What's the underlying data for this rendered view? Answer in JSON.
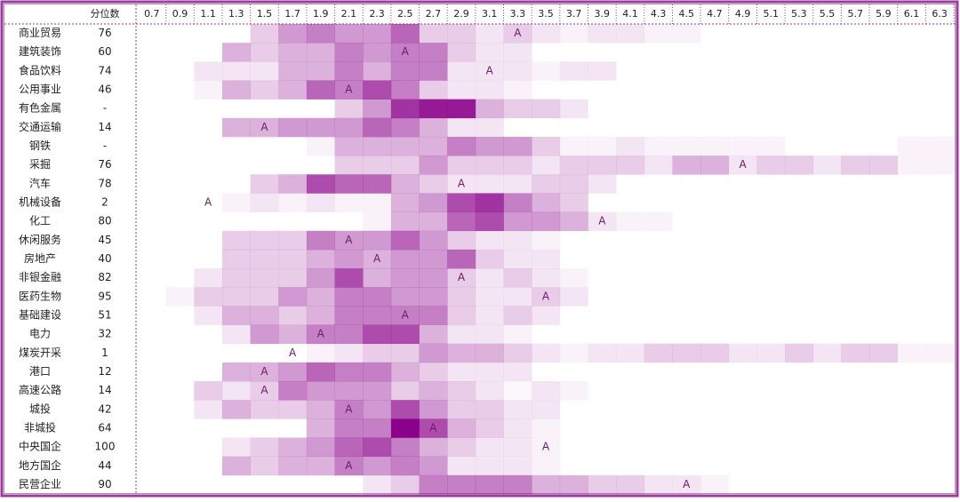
{
  "table": {
    "percentile_header": "分位数",
    "marker_label": "A",
    "columns": [
      0.7,
      0.9,
      1.1,
      1.3,
      1.5,
      1.7,
      1.9,
      2.1,
      2.3,
      2.5,
      2.7,
      2.9,
      3.1,
      3.3,
      3.5,
      3.7,
      3.9,
      4.1,
      4.3,
      4.5,
      4.7,
      4.9,
      5.1,
      5.3,
      5.5,
      5.7,
      5.9,
      6.1,
      6.3
    ],
    "rows": [
      {
        "name": "商业贸易",
        "percentile": 76,
        "marker_at": 3.3,
        "values": [
          0,
          0,
          0,
          0,
          2,
          4,
          5,
          4,
          4,
          6,
          2,
          2,
          1,
          2,
          1,
          0.5,
          1,
          1,
          0.5,
          0.5,
          0,
          0,
          0,
          0,
          0,
          0,
          0,
          0,
          0
        ]
      },
      {
        "name": "建筑装饰",
        "percentile": 60,
        "marker_at": 2.5,
        "values": [
          0,
          0,
          0,
          3,
          2,
          3,
          3,
          5,
          4,
          5,
          5,
          2,
          1,
          1,
          0,
          0,
          0,
          0,
          0,
          0,
          0,
          0,
          0,
          0,
          0,
          0,
          0,
          0,
          0
        ]
      },
      {
        "name": "食品饮料",
        "percentile": 74,
        "marker_at": 3.1,
        "values": [
          0,
          0,
          1,
          1,
          1,
          3,
          3,
          5,
          3,
          5,
          5,
          1,
          1,
          1,
          0.5,
          1,
          1,
          0,
          0,
          0,
          0,
          0,
          0,
          0,
          0,
          0,
          0,
          0,
          0
        ]
      },
      {
        "name": "公用事业",
        "percentile": 46,
        "marker_at": 2.1,
        "values": [
          0,
          0,
          0.5,
          3,
          2,
          3,
          6,
          5,
          7,
          5,
          2,
          1,
          1,
          0.5,
          0,
          0,
          0,
          0,
          0,
          0,
          0,
          0,
          0,
          0,
          0,
          0,
          0,
          0,
          0
        ]
      },
      {
        "name": "有色金属",
        "percentile": "-",
        "marker_at": null,
        "values": [
          0,
          0,
          0,
          0,
          0,
          0,
          0,
          2,
          4,
          8,
          9,
          9,
          3,
          2,
          2,
          1,
          0,
          0,
          0,
          0,
          0,
          0,
          0,
          0,
          0,
          0,
          0,
          0,
          0
        ]
      },
      {
        "name": "交通运输",
        "percentile": 14,
        "marker_at": 1.5,
        "values": [
          0,
          0,
          0,
          3,
          3,
          4,
          4,
          4,
          6,
          5,
          3,
          1,
          1,
          0,
          0,
          0,
          0,
          0,
          0,
          0,
          0,
          0,
          0,
          0,
          0,
          0,
          0,
          0,
          0
        ]
      },
      {
        "name": "钢铁",
        "percentile": "-",
        "marker_at": null,
        "values": [
          0,
          0,
          0,
          0,
          0,
          0,
          0.5,
          3,
          3,
          3,
          3,
          5,
          4,
          4,
          2,
          0.5,
          0.5,
          1,
          0.5,
          0.5,
          0.5,
          0.5,
          0.5,
          0,
          0,
          0,
          0,
          0.5,
          0.5
        ]
      },
      {
        "name": "采掘",
        "percentile": 76,
        "marker_at": 4.9,
        "values": [
          0,
          0,
          0,
          0,
          0,
          0,
          0,
          2,
          2,
          2,
          4,
          2,
          2,
          2,
          1,
          2,
          2,
          2,
          1,
          3,
          3,
          1,
          2,
          2,
          1,
          2,
          2,
          0.5,
          0.5
        ]
      },
      {
        "name": "汽车",
        "percentile": 78,
        "marker_at": 2.9,
        "values": [
          0,
          0,
          0,
          0,
          2,
          3,
          7,
          6,
          6,
          3,
          2,
          1,
          1,
          1,
          2,
          2,
          1,
          0,
          0,
          0,
          0,
          0,
          0,
          0,
          0,
          0,
          0,
          0,
          0
        ]
      },
      {
        "name": "机械设备",
        "percentile": 2,
        "marker_at": 1.1,
        "values": [
          0,
          0,
          0,
          0.5,
          1,
          0.5,
          1,
          0.5,
          0.5,
          3,
          4,
          7,
          8,
          5,
          3,
          2,
          0,
          0,
          0,
          0,
          0,
          0,
          0,
          0,
          0,
          0,
          0,
          0,
          0
        ]
      },
      {
        "name": "化工",
        "percentile": 80,
        "marker_at": 3.9,
        "values": [
          0,
          0,
          0,
          0,
          0,
          0,
          0,
          0,
          0.5,
          3,
          3,
          6,
          7,
          4,
          4,
          3,
          1,
          0.5,
          0.5,
          0,
          0,
          0,
          0,
          0,
          0,
          0,
          0,
          0,
          0
        ]
      },
      {
        "name": "休闲服务",
        "percentile": 45,
        "marker_at": 2.1,
        "values": [
          0,
          0,
          0,
          2,
          2,
          2,
          5,
          4,
          4,
          6,
          4,
          2,
          1,
          1,
          0.5,
          0,
          0,
          0,
          0,
          0,
          0,
          0,
          0,
          0,
          0,
          0,
          0,
          0,
          0
        ]
      },
      {
        "name": "房地产",
        "percentile": 40,
        "marker_at": 2.3,
        "values": [
          0,
          0,
          0,
          2,
          2,
          2,
          3,
          4,
          3,
          4,
          4,
          6,
          2,
          1,
          1,
          0,
          0,
          0,
          0,
          0,
          0,
          0,
          0,
          0,
          0,
          0,
          0,
          0,
          0
        ]
      },
      {
        "name": "非银金融",
        "percentile": 82,
        "marker_at": 2.9,
        "values": [
          0,
          0,
          1,
          2,
          2,
          2,
          4,
          7,
          3,
          4,
          4,
          2,
          1,
          2,
          1,
          0.5,
          0,
          0,
          0,
          0,
          0,
          0,
          0,
          0,
          0,
          0,
          0,
          0,
          0
        ]
      },
      {
        "name": "医药生物",
        "percentile": 95,
        "marker_at": 3.5,
        "values": [
          0,
          0.5,
          2,
          2,
          2,
          4,
          3,
          5,
          5,
          4,
          4,
          2,
          1,
          1,
          2,
          1,
          0,
          0,
          0,
          0,
          0,
          0,
          0,
          0,
          0,
          0,
          0,
          0,
          0
        ]
      },
      {
        "name": "基础建设",
        "percentile": 51,
        "marker_at": 2.5,
        "values": [
          0,
          0,
          1,
          3,
          3,
          2,
          3,
          5,
          5,
          5,
          5,
          2,
          1,
          2,
          1,
          0,
          0,
          0,
          0,
          0,
          0,
          0,
          0,
          0,
          0,
          0,
          0,
          0,
          0
        ]
      },
      {
        "name": "电力",
        "percentile": 32,
        "marker_at": 1.9,
        "values": [
          0,
          0,
          0,
          1,
          4,
          3,
          5,
          5,
          7,
          7,
          3,
          1,
          1,
          0.5,
          0,
          0,
          0,
          0,
          0,
          0,
          0,
          0,
          0,
          0,
          0,
          0,
          0,
          0,
          0
        ]
      },
      {
        "name": "煤炭开采",
        "percentile": 1,
        "marker_at": 1.7,
        "values": [
          0,
          0,
          0,
          0,
          0,
          0,
          0.5,
          1,
          2,
          2,
          4,
          3,
          3,
          2,
          1,
          0.5,
          1,
          1,
          2,
          2,
          2,
          1,
          1,
          2,
          1,
          2,
          2,
          0.5,
          0.5
        ]
      },
      {
        "name": "港口",
        "percentile": 12,
        "marker_at": 1.5,
        "values": [
          0,
          0,
          0,
          3,
          3,
          4,
          6,
          5,
          5,
          3,
          2,
          1,
          1,
          1,
          0,
          0,
          0,
          0,
          0,
          0,
          0,
          0,
          0,
          0,
          0,
          0,
          0,
          0,
          0
        ]
      },
      {
        "name": "高速公路",
        "percentile": 14,
        "marker_at": 1.5,
        "values": [
          0,
          0,
          2,
          1,
          2,
          5,
          4,
          4,
          4,
          2,
          3,
          2,
          1,
          0.3,
          1,
          0.5,
          0,
          0,
          0,
          0,
          0,
          0,
          0,
          0,
          0,
          0,
          0,
          0,
          0
        ]
      },
      {
        "name": "城投",
        "percentile": 42,
        "marker_at": 2.1,
        "values": [
          0,
          0,
          1,
          3,
          2,
          2,
          3,
          5,
          4,
          7,
          4,
          2,
          2,
          1,
          1,
          0,
          0,
          0,
          0,
          0,
          0,
          0,
          0,
          0,
          0,
          0,
          0,
          0,
          0
        ]
      },
      {
        "name": "非城投",
        "percentile": 64,
        "marker_at": 2.7,
        "values": [
          0,
          0,
          0,
          0,
          0,
          0,
          3,
          5,
          5,
          10,
          7,
          3,
          2,
          1,
          0.5,
          0,
          0,
          0,
          0,
          0,
          0,
          0,
          0,
          0,
          0,
          0,
          0,
          0,
          0
        ]
      },
      {
        "name": "中央国企",
        "percentile": 100,
        "marker_at": 3.5,
        "values": [
          0,
          0,
          0,
          1,
          2,
          3,
          4,
          6,
          7,
          5,
          3,
          2,
          1,
          1,
          0.5,
          0,
          0,
          0,
          0,
          0,
          0,
          0,
          0,
          0,
          0,
          0,
          0,
          0,
          0
        ]
      },
      {
        "name": "地方国企",
        "percentile": 44,
        "marker_at": 2.1,
        "values": [
          0,
          0,
          0,
          3,
          2,
          3,
          3,
          5,
          4,
          5,
          4,
          1,
          1,
          1,
          0.5,
          0,
          0,
          0,
          0,
          0,
          0,
          0,
          0,
          0,
          0,
          0,
          0,
          0,
          0
        ]
      },
      {
        "name": "民营企业",
        "percentile": 90,
        "marker_at": 4.5,
        "values": [
          0,
          0,
          0,
          0,
          0,
          0,
          0,
          0,
          1,
          2,
          5,
          5,
          5,
          5,
          3,
          3,
          2,
          2,
          1,
          1,
          0.5,
          0,
          0,
          0,
          0,
          0,
          0,
          0,
          0
        ]
      }
    ]
  }
}
